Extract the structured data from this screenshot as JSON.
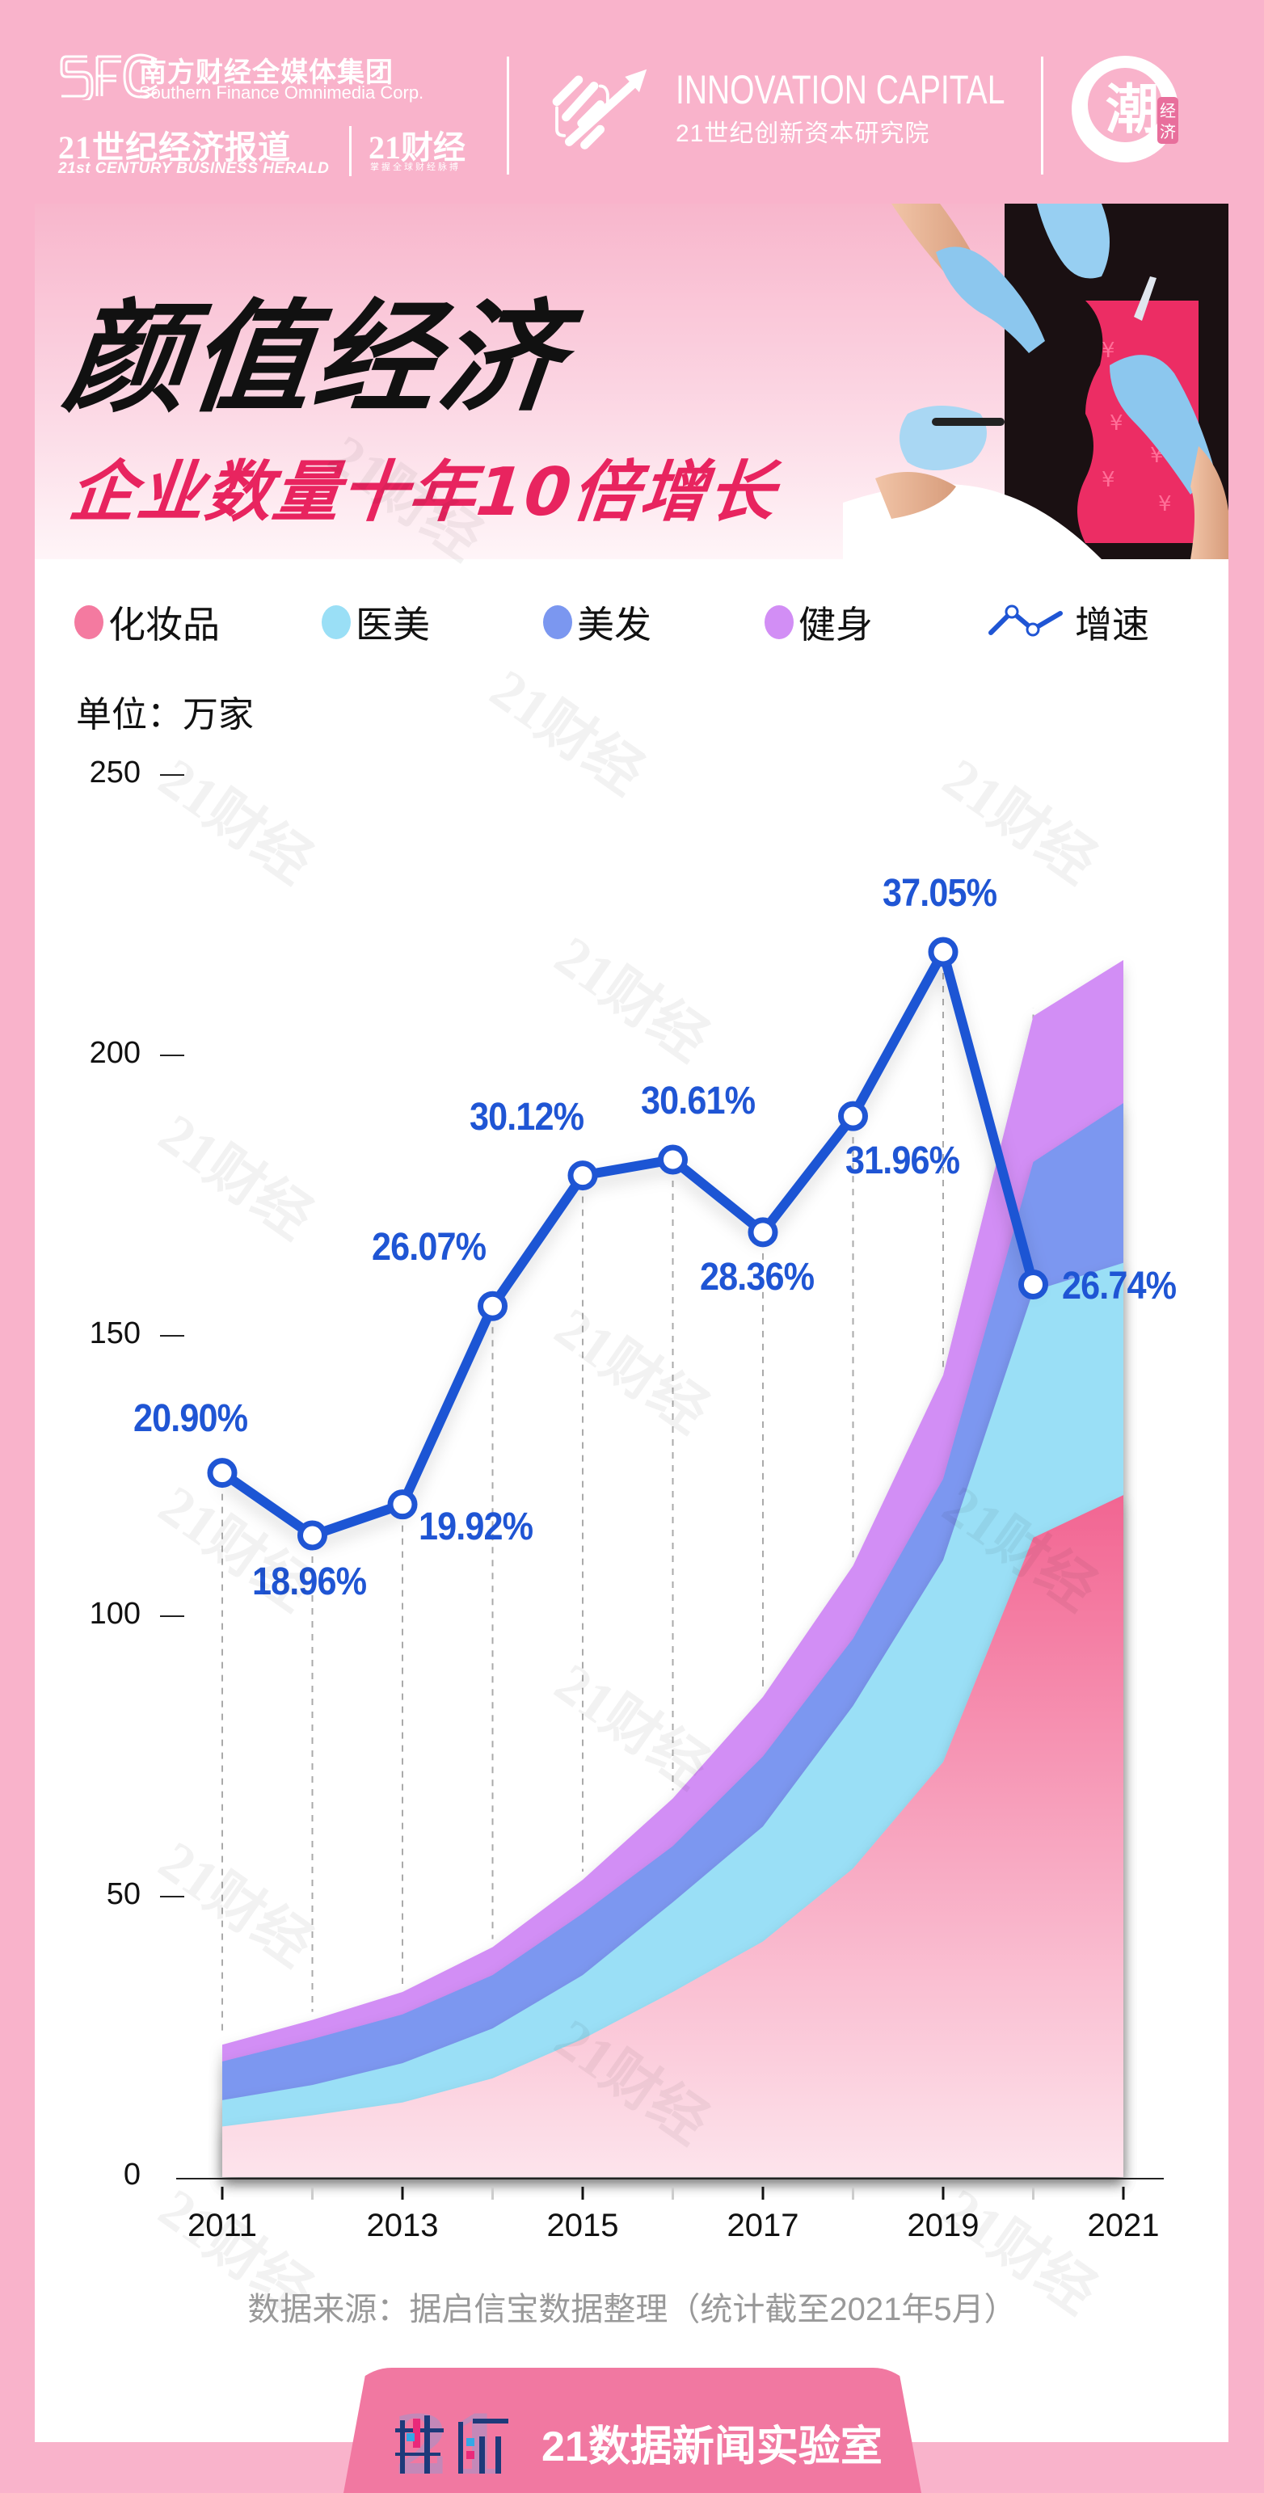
{
  "header": {
    "sfc_logo_text": "SFC",
    "group_name_cn": "南方财经全媒体集团",
    "group_name_en": "Southern Finance Omnimedia Corp.",
    "herald_cn": "21世纪经济报道",
    "herald_en": "21st CENTURY BUSINESS HERALD",
    "caijing_cn": "21财经",
    "caijing_slogan": "掌握全球财经脉搏",
    "innovation_en": "INNOVATION CAPITAL",
    "innovation_cn": "21世纪创新资本研究院",
    "chao_logo_main": "潮",
    "chao_logo_sub": "经济"
  },
  "banner": {
    "title": "颜值经济",
    "subtitle": "企业数量十年10倍增长"
  },
  "legend": [
    {
      "label": "化妆品",
      "color": "#f47aa0",
      "icon": "circle-dot"
    },
    {
      "label": "医美",
      "color": "#9adff6",
      "icon": "circle-dot"
    },
    {
      "label": "美发",
      "color": "#7b97f0",
      "icon": "circle-dot"
    },
    {
      "label": "健身",
      "color": "#d28ef5",
      "icon": "circle-dot"
    },
    {
      "label": "增速",
      "color": "#1f55d4",
      "icon": "line-marker"
    }
  ],
  "unit": "单位：万家",
  "source": "数据来源：据启信宝数据整理（统计截至2021年5月）",
  "footer": {
    "logo_text": "数读",
    "lab_name": "21数据新闻实验室"
  },
  "watermark_text": "21财经",
  "colors": {
    "background": "#f9b3cb",
    "card": "#ffffff",
    "line": "#1f55d4",
    "cosmetics": "#f47aa0",
    "medical": "#9adff6",
    "hair": "#7b97f0",
    "fitness": "#d28ef5",
    "accent_red": "#e8245f",
    "footer_tab": "#f178a1"
  },
  "chart_data": {
    "type": "area",
    "stacked": true,
    "title": "颜值经济 企业数量十年10倍增长",
    "xlabel": "",
    "ylabel": "单位：万家",
    "ylim": [
      0,
      250
    ],
    "yticks": [
      "0",
      "50",
      "100",
      "150",
      "200",
      "250"
    ],
    "xticks_labeled": [
      "2011",
      "2013",
      "2015",
      "2017",
      "2019",
      "2021"
    ],
    "categories": [
      "2011",
      "2012",
      "2013",
      "2014",
      "2015",
      "2016",
      "2017",
      "2018",
      "2019",
      "2020",
      "2021"
    ],
    "series": [
      {
        "name": "化妆品",
        "values": [
          9,
          11,
          13.3,
          17.6,
          24.6,
          33,
          42,
          55,
          74,
          114,
          121.6
        ]
      },
      {
        "name": "医美",
        "values": [
          4.7,
          5.4,
          7,
          8.9,
          11.4,
          16,
          20.5,
          29,
          36,
          44,
          41.4
        ]
      },
      {
        "name": "美发",
        "values": [
          6.9,
          8.2,
          8.7,
          9.5,
          11,
          10,
          12.5,
          12,
          14.5,
          23,
          28.5
        ]
      },
      {
        "name": "健身",
        "values": [
          3,
          3.4,
          4,
          5,
          6,
          8.5,
          10.6,
          13,
          18.5,
          26,
          25.5
        ]
      }
    ],
    "growth_rate": {
      "name": "增速",
      "categories": [
        "2011",
        "2012",
        "2013",
        "2014",
        "2015",
        "2016",
        "2017",
        "2018",
        "2019",
        "2020"
      ],
      "values": [
        20.9,
        18.96,
        19.92,
        26.07,
        30.12,
        30.61,
        28.36,
        31.96,
        37.05,
        26.74
      ],
      "labels": [
        "20.90%",
        "18.96%",
        "19.92%",
        "26.07%",
        "30.12%",
        "30.61%",
        "28.36%",
        "31.96%",
        "37.05%",
        "26.74%"
      ]
    },
    "legend_position": "top",
    "grid": false
  }
}
